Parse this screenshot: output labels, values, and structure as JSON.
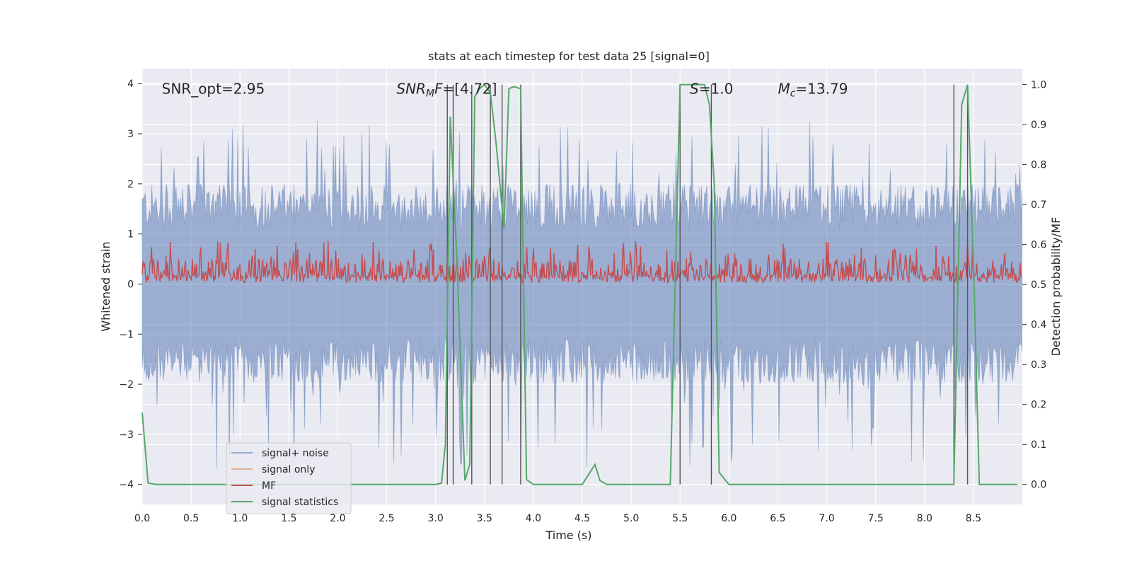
{
  "chart_data": {
    "type": "line",
    "title": "stats at each timestep for test data 25 [signal=0]",
    "xlabel": "Time (s)",
    "ylabel": "Whitened strain",
    "y2label": "Detection probability/MF",
    "xlim": [
      0.0,
      9.0
    ],
    "ylim": [
      -4.4,
      4.3
    ],
    "y2lim": [
      -0.05,
      1.04
    ],
    "xticks": [
      "0.0",
      "0.5",
      "1.0",
      "1.5",
      "2.0",
      "2.5",
      "3.0",
      "3.5",
      "4.0",
      "4.5",
      "5.0",
      "5.5",
      "6.0",
      "6.5",
      "7.0",
      "7.5",
      "8.0",
      "8.5"
    ],
    "yticks": [
      "4",
      "3",
      "2",
      "1",
      "0",
      "−1",
      "−2",
      "−3",
      "−4"
    ],
    "y2ticks": [
      "1.0",
      "0.9",
      "0.8",
      "0.7",
      "0.6",
      "0.5",
      "0.4",
      "0.3",
      "0.2",
      "0.1",
      "0.0"
    ],
    "grid": true,
    "legend_position": "lower-left",
    "annotations": [
      {
        "text": "SNR_opt=2.95",
        "x": 0.2,
        "y": 3.9
      },
      {
        "text": "SNR_MF=[4.72]",
        "x": 2.6,
        "y": 3.9
      },
      {
        "text": "S=1.0",
        "x": 5.6,
        "y": 3.9
      },
      {
        "text": "M_c=13.79",
        "x": 6.5,
        "y": 3.9
      }
    ],
    "series": [
      {
        "name": "signal+ noise",
        "color": "#4c72b0",
        "kind": "noise band",
        "amplitude_typical": 2.0,
        "amplitude_max": 3.3
      },
      {
        "name": "signal only",
        "color": "#dd8452",
        "values": []
      },
      {
        "name": "MF",
        "color": "#c44e52",
        "kind": "noise band",
        "range": [
          0.0,
          0.8
        ]
      },
      {
        "name": "signal statistics",
        "color": "#55a868",
        "axis": "right",
        "x": [
          0.0,
          0.06,
          0.15,
          0.5,
          1.0,
          1.5,
          2.0,
          2.5,
          3.0,
          3.06,
          3.1,
          3.15,
          3.22,
          3.3,
          3.35,
          3.4,
          3.45,
          3.5,
          3.56,
          3.62,
          3.7,
          3.75,
          3.8,
          3.87,
          3.93,
          4.0,
          4.5,
          4.63,
          4.68,
          4.75,
          4.82,
          5.0,
          5.4,
          5.5,
          5.55,
          5.6,
          5.75,
          5.8,
          5.85,
          5.9,
          6.0,
          6.5,
          7.0,
          7.5,
          8.0,
          8.3,
          8.38,
          8.44,
          8.5,
          8.56,
          8.6,
          8.65,
          8.95
        ],
        "values": [
          0.18,
          0.003,
          0.0,
          0.0,
          0.0,
          0.0,
          0.0,
          0.0,
          0.0,
          0.003,
          0.1,
          0.92,
          0.55,
          0.01,
          0.05,
          0.97,
          0.99,
          1.0,
          0.98,
          0.85,
          0.64,
          0.99,
          0.995,
          0.99,
          0.012,
          0.0,
          0.0,
          0.05,
          0.01,
          0.0,
          0.0,
          0.0,
          0.0,
          1.0,
          1.0,
          1.0,
          1.0,
          0.95,
          0.75,
          0.03,
          0.0,
          0.0,
          0.0,
          0.0,
          0.0,
          0.0,
          0.95,
          1.0,
          0.55,
          0.0,
          0.0,
          0.0,
          0.0
        ]
      }
    ],
    "vertical_lines_x": [
      3.12,
      3.18,
      3.37,
      3.56,
      3.68,
      3.87,
      5.5,
      5.82,
      8.3,
      8.44
    ]
  }
}
